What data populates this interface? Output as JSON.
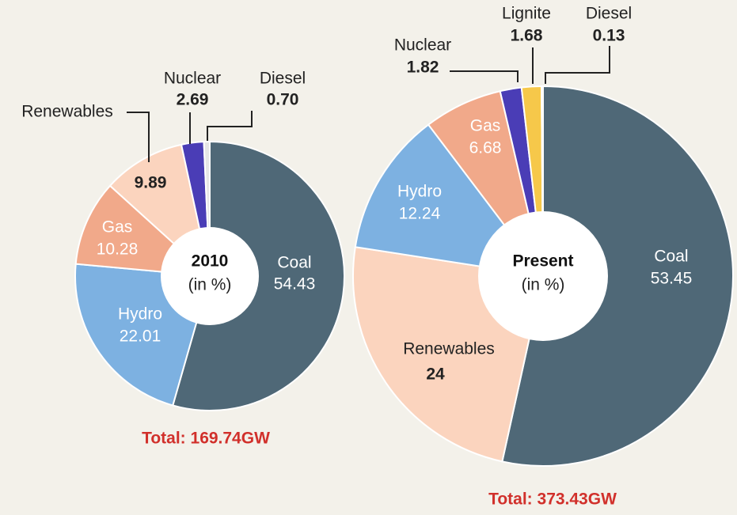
{
  "chart_data": [
    {
      "type": "pie",
      "center_label": "2010",
      "center_sublabel": "(in %)",
      "categories": [
        "Coal",
        "Hydro",
        "Gas",
        "Renewables",
        "Nuclear",
        "Diesel"
      ],
      "values": [
        54.43,
        22.01,
        10.28,
        9.89,
        2.69,
        0.7
      ],
      "value_labels": [
        "54.43",
        "22.01",
        "10.28",
        "9.89",
        "2.69",
        "0.70"
      ],
      "colors": [
        "#4f6877",
        "#7db1e1",
        "#f1a98a",
        "#fbd4be",
        "#4a3db6",
        "#e6e6e6"
      ],
      "total": "Total: 169.74GW"
    },
    {
      "type": "pie",
      "center_label": "Present",
      "center_sublabel": "(in %)",
      "categories": [
        "Coal",
        "Renewables",
        "Hydro",
        "Gas",
        "Nuclear",
        "Lignite",
        "Diesel"
      ],
      "values": [
        53.45,
        24,
        12.24,
        6.68,
        1.82,
        1.68,
        0.13
      ],
      "value_labels": [
        "53.45",
        "24",
        "12.24",
        "6.68",
        "1.82",
        "1.68",
        "0.13"
      ],
      "colors": [
        "#4f6877",
        "#fbd4be",
        "#7db1e1",
        "#f1a98a",
        "#4a3db6",
        "#f6c84a",
        "#e6e6e6"
      ],
      "total": "Total: 373.43GW"
    }
  ]
}
